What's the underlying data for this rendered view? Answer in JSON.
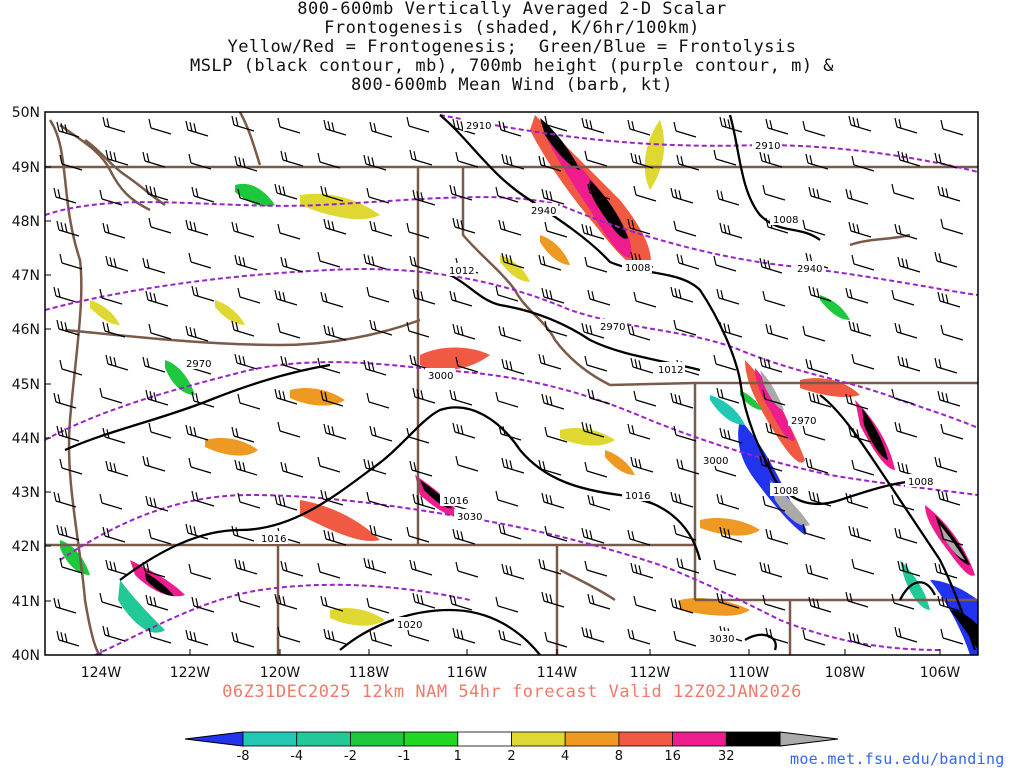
{
  "title": {
    "lines": [
      "800-600mb Vertically Averaged 2-D Scalar",
      "Frontogenesis (shaded, K/6hr/100km)",
      "Yellow/Red = Frontogenesis;  Green/Blue = Frontolysis",
      "MSLP (black contour, mb), 700mb height (purple contour, m) &",
      "800-600mb Mean Wind (barb, kt)"
    ]
  },
  "subtitle": "06Z31DEC2025 12km NAM 54hr forecast Valid 12Z02JAN2026",
  "credit": "moe.met.fsu.edu/banding",
  "axes": {
    "lat_labels": [
      "50N",
      "49N",
      "48N",
      "47N",
      "46N",
      "45N",
      "44N",
      "43N",
      "42N",
      "41N",
      "40N"
    ],
    "lon_labels": [
      "124W",
      "122W",
      "120W",
      "118W",
      "116W",
      "114W",
      "112W",
      "110W",
      "108W",
      "106W"
    ]
  },
  "colorbar": {
    "labels": [
      "-8",
      "-4",
      "-2",
      "-1",
      "1",
      "2",
      "4",
      "8",
      "16",
      "32"
    ],
    "colors": [
      "#2233ee",
      "#22c8b4",
      "#22c896",
      "#1dc83c",
      "#22d822",
      "#ffffff",
      "#e0d832",
      "#ee9a22",
      "#f05a42",
      "#ee1c8c",
      "#000000",
      "#aaaaaa"
    ]
  },
  "contour_labels": {
    "mslp": [
      "1012",
      "1008",
      "1008",
      "1012",
      "1016",
      "1016",
      "1016",
      "1020",
      "1008",
      "1008"
    ],
    "height_700mb": [
      "2910",
      "2910",
      "2940",
      "2940",
      "2970",
      "2970",
      "2970",
      "3000",
      "3000",
      "3030",
      "3030"
    ]
  },
  "colors": {
    "mslp": "#000000",
    "height": "#9a22c8",
    "borders": "#7a5a48",
    "subtitle": "#f07a6a",
    "credit": "#3366ee"
  }
}
